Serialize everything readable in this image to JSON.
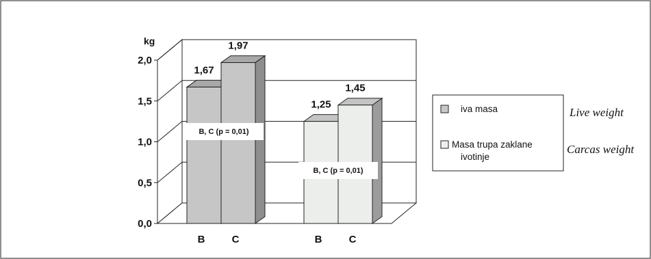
{
  "chart_data": {
    "type": "bar",
    "ylabel": "kg",
    "ylim": [
      0,
      2.0
    ],
    "yticks": [
      "0,0",
      "0,5",
      "1,0",
      "1,5",
      "2,0"
    ],
    "groups": [
      {
        "bars": [
          {
            "category": "B",
            "value": 1.67,
            "label": "1,67"
          },
          {
            "category": "C",
            "value": 1.97,
            "label": "1,97"
          }
        ],
        "annotation": "B, C (p = 0,01)"
      },
      {
        "bars": [
          {
            "category": "B",
            "value": 1.25,
            "label": "1,25"
          },
          {
            "category": "C",
            "value": 1.45,
            "label": "1,45"
          }
        ],
        "annotation": "B, C (p = 0,01)"
      }
    ],
    "series": [
      {
        "name": "iva masa",
        "translation": "Live weight",
        "color": "#c8c8c8"
      },
      {
        "name": "Masa trupa zaklane ivotinje",
        "translation": "Carcas weight",
        "color": "#eef0ee"
      }
    ],
    "grid": true,
    "legend_position": "right"
  },
  "colors": {
    "group1_front": "#c6c6c6",
    "group1_side": "#8e8e8e",
    "group1_top": "#a8a8a8",
    "group2_front": "#eceeec",
    "group2_side": "#9c9c9c",
    "group2_top": "#c4c4c4",
    "line": "#222222"
  }
}
